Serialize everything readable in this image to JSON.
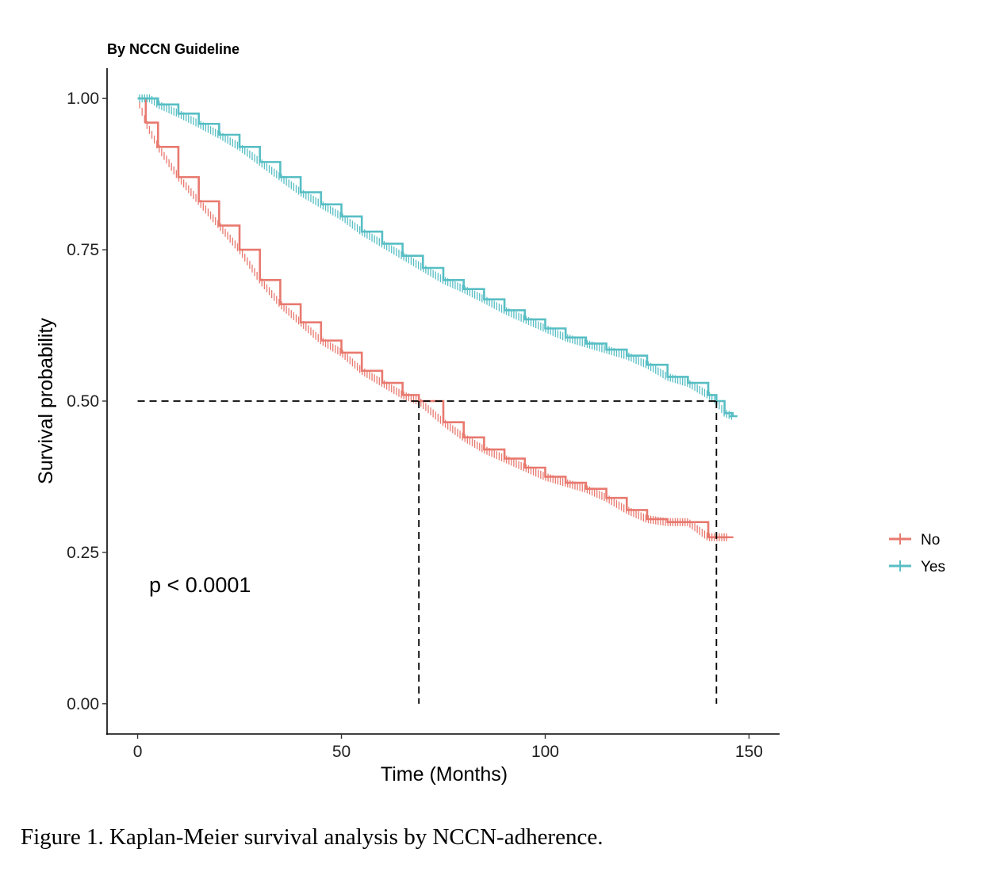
{
  "chart_data": {
    "type": "line",
    "title": "By NCCN Guideline",
    "xlabel": "Time (Months)",
    "ylabel": "Survival probability",
    "xlim": [
      -7.5,
      157.5
    ],
    "ylim": [
      -0.05,
      1.05
    ],
    "x_ticks": [
      0,
      50,
      100,
      150
    ],
    "y_ticks": [
      0.0,
      0.25,
      0.5,
      0.75,
      1.0
    ],
    "x_tick_labels": [
      "0",
      "50",
      "100",
      "150"
    ],
    "y_tick_labels": [
      "0.00",
      "0.25",
      "0.50",
      "0.75",
      "1.00"
    ],
    "grid": false,
    "legend_position": "right",
    "annotation": "p < 0.0001",
    "median_line": {
      "y": 0.5,
      "x_values": [
        69,
        142
      ]
    },
    "series": [
      {
        "name": "No",
        "color": "#E8796F",
        "x": [
          0,
          2,
          5,
          10,
          15,
          20,
          25,
          30,
          35,
          40,
          45,
          50,
          55,
          60,
          65,
          69,
          75,
          80,
          85,
          90,
          95,
          100,
          105,
          110,
          115,
          120,
          125,
          130,
          135,
          140,
          145
        ],
        "y": [
          1.0,
          0.96,
          0.92,
          0.87,
          0.83,
          0.79,
          0.75,
          0.7,
          0.66,
          0.63,
          0.6,
          0.58,
          0.55,
          0.53,
          0.51,
          0.5,
          0.465,
          0.44,
          0.42,
          0.405,
          0.39,
          0.375,
          0.365,
          0.355,
          0.34,
          0.32,
          0.305,
          0.3,
          0.3,
          0.275,
          0.275
        ]
      },
      {
        "name": "Yes",
        "color": "#57BEC4",
        "x": [
          0,
          3,
          5,
          10,
          15,
          20,
          25,
          30,
          35,
          40,
          45,
          50,
          55,
          60,
          65,
          70,
          75,
          80,
          85,
          90,
          95,
          100,
          105,
          110,
          115,
          120,
          125,
          130,
          135,
          140,
          142,
          144,
          146
        ],
        "y": [
          1.0,
          1.0,
          0.99,
          0.975,
          0.958,
          0.94,
          0.92,
          0.895,
          0.87,
          0.845,
          0.825,
          0.805,
          0.78,
          0.76,
          0.74,
          0.72,
          0.7,
          0.685,
          0.668,
          0.65,
          0.635,
          0.62,
          0.605,
          0.595,
          0.585,
          0.575,
          0.56,
          0.54,
          0.53,
          0.51,
          0.5,
          0.48,
          0.475
        ]
      }
    ]
  },
  "caption": "Figure 1. Kaplan-Meier survival analysis by NCCN-adherence."
}
